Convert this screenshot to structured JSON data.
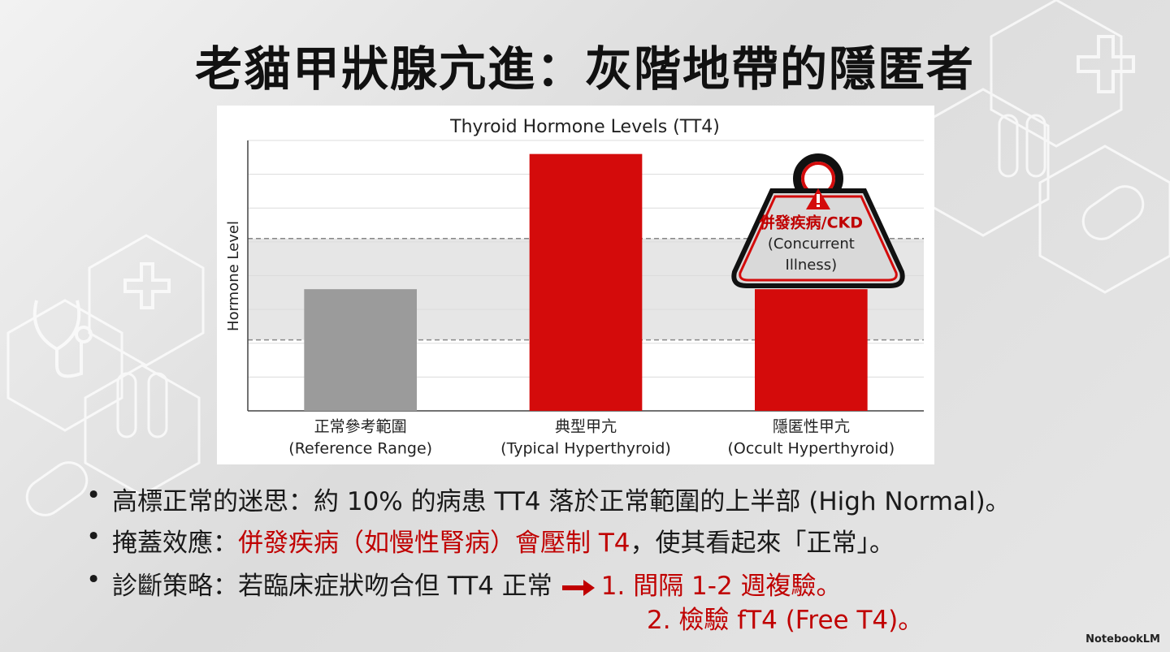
{
  "title": "老貓甲狀腺亢進：灰階地帶的隱匿者",
  "chart_data": {
    "type": "bar",
    "title": "Thyroid Hormone Levels (TT4)",
    "y_label": "Hormone Level",
    "categories": [
      [
        "正常參考範圍",
        "(Reference Range)"
      ],
      [
        "典型甲亢",
        "(Typical Hyperthyroid)"
      ],
      [
        "隱匿性甲亢",
        "(Occult Hyperthyroid)"
      ]
    ],
    "values": [
      3.6,
      7.6,
      3.6
    ],
    "colors": [
      "#9b9b9b",
      "#d40b0b",
      "#d40b0b"
    ],
    "ylim": [
      0,
      8
    ],
    "yticks": [
      0,
      1,
      2,
      3,
      4,
      5,
      6,
      7,
      8
    ],
    "grid": true,
    "reference_range": [
      2.1,
      5.1
    ],
    "annotation": {
      "category": 2,
      "lines": [
        "併發疾病/CKD",
        "(Concurrent",
        "Illness)"
      ]
    }
  },
  "bullets": [
    {
      "parts": [
        {
          "text": "高標正常的迷思：約 10% 的病患 TT4 落於正常範圍的上半部 (High Normal)。",
          "color": "#1a1a1a"
        }
      ]
    },
    {
      "parts": [
        {
          "text": "掩蓋效應：",
          "color": "#1a1a1a"
        },
        {
          "text": "併發疾病（如慢性腎病）會壓制 T4",
          "color": "#c00000"
        },
        {
          "text": "，使其看起來「正常」。",
          "color": "#1a1a1a"
        }
      ]
    },
    {
      "parts": [
        {
          "text": "診斷策略：若臨床症狀吻合但 TT4 正常",
          "color": "#1a1a1a"
        },
        {
          "text": "1. 間隔 1-2 週複驗。",
          "color": "#c00000"
        }
      ],
      "continuation": {
        "text": "2. 檢驗 fT4 (Free T4)。",
        "color": "#c00000"
      }
    }
  ],
  "watermark": "NotebookLM"
}
